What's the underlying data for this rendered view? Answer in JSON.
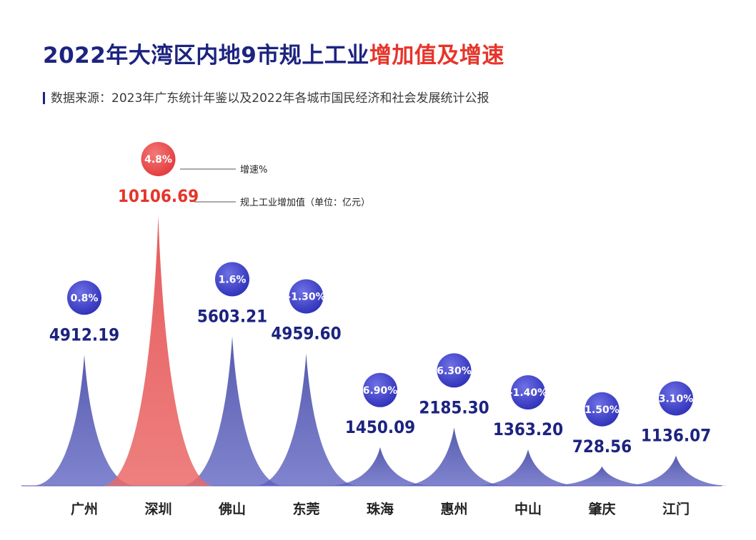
{
  "header": {
    "title_main": "2022年大湾区内地9市规上工业",
    "title_accent": "增加值及增速",
    "subtitle": "数据来源：2023年广东统计年鉴以及2022年各城市国民经济和社会发展统计公报"
  },
  "legend": {
    "growth_label": "增速%",
    "value_label": "规上工业增加值（单位：亿元）"
  },
  "colors": {
    "blue": "#3f44a6",
    "blue_text": "#1c2380",
    "red": "#e4474a",
    "red_text": "#e6352b"
  },
  "chart_data": {
    "type": "area",
    "categories": [
      "广州",
      "深圳",
      "佛山",
      "东莞",
      "珠海",
      "惠州",
      "中山",
      "肇庆",
      "江门"
    ],
    "series": [
      {
        "name": "规上工业增加值（单位：亿元）",
        "values": [
          4912.19,
          10106.69,
          5603.21,
          4959.6,
          1450.09,
          2185.3,
          1363.2,
          728.56,
          1136.07
        ]
      },
      {
        "name": "增速%",
        "values": [
          0.8,
          4.8,
          1.6,
          -1.3,
          6.9,
          6.3,
          -1.4,
          1.5,
          3.1
        ]
      }
    ],
    "value_labels": [
      "4912.19",
      "10106.69",
      "5603.21",
      "4959.60",
      "1450.09",
      "2185.30",
      "1363.20",
      "728.56",
      "1136.07"
    ],
    "growth_labels": [
      "0.8%",
      "4.8%",
      "1.6%",
      "-1.30%",
      "6.90%",
      "6.30%",
      "-1.40%",
      "1.50%",
      "3.10%"
    ],
    "highlight": "深圳"
  }
}
